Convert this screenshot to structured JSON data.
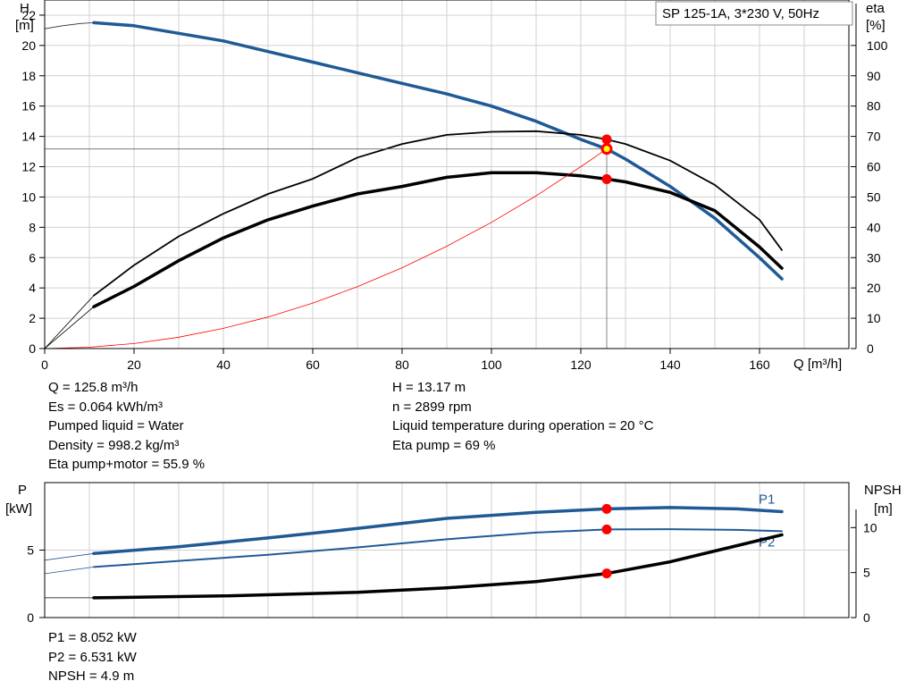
{
  "model_label": "SP 125-1A, 3*230 V, 50Hz",
  "top_chart": {
    "left_axis_title": "H",
    "left_axis_unit": "[m]",
    "right_axis_title": "eta",
    "right_axis_unit": "[%]",
    "x_axis_label": "Q [m³/h]"
  },
  "bottom_chart": {
    "left_axis_title": "P",
    "left_axis_unit": "[kW]",
    "right_axis_title": "NPSH",
    "right_axis_unit": "[m]"
  },
  "readouts_top_left": [
    "Q = 125.8 m³/h",
    "Es = 0.064 kWh/m³",
    "Pumped liquid = Water",
    "Density = 998.2 kg/m³",
    "Eta pump+motor = 55.9 %"
  ],
  "readouts_top_right": [
    "H = 13.17 m",
    "n = 2899 rpm",
    "Liquid temperature during operation = 20 °C",
    "Eta pump = 69 %"
  ],
  "readouts_bottom": [
    "P1 = 8.052 kW",
    "P2 = 6.531 kW",
    "NPSH = 4.9 m"
  ],
  "colors": {
    "head_curve": "#1f5a96",
    "efficiency_curves": "#000000",
    "system_curve": "#ff0000",
    "duty_point": "#ff0000",
    "duty_point_center": "#ffff00",
    "grid": "#d0d0d0",
    "power_curves": "#1f5a96"
  },
  "chart_data": [
    {
      "type": "line",
      "x_ticks": [
        0,
        20,
        40,
        60,
        80,
        100,
        120,
        140,
        160
      ],
      "xlim": [
        0,
        180
      ],
      "ylim": [
        0,
        23
      ],
      "y_ticks": [
        0,
        2,
        4,
        6,
        8,
        10,
        12,
        14,
        16,
        18,
        20,
        22
      ],
      "y2lim": [
        0,
        115
      ],
      "y2_ticks": [
        0,
        10,
        20,
        30,
        40,
        50,
        60,
        70,
        80,
        90,
        100
      ],
      "grid": true,
      "series": [
        {
          "axis": "left",
          "role": "head-extension",
          "x": [
            0,
            4,
            8,
            11
          ],
          "y": [
            21.1,
            21.3,
            21.45,
            21.5
          ]
        },
        {
          "axis": "left",
          "role": "head",
          "x": [
            11,
            20,
            30,
            40,
            50,
            60,
            70,
            80,
            90,
            100,
            110,
            120,
            125.8,
            130,
            140,
            150,
            160,
            165
          ],
          "y": [
            21.5,
            21.3,
            20.8,
            20.3,
            19.6,
            18.9,
            18.2,
            17.5,
            16.8,
            16.0,
            15.0,
            13.8,
            13.17,
            12.5,
            10.7,
            8.6,
            6.0,
            4.6
          ]
        },
        {
          "axis": "right",
          "role": "eta-pump-extension",
          "x": [
            0,
            11
          ],
          "y": [
            0,
            17.5
          ]
        },
        {
          "axis": "right",
          "role": "eta-pump",
          "x": [
            11,
            20,
            30,
            40,
            50,
            60,
            70,
            80,
            90,
            100,
            110,
            120,
            125.8,
            130,
            140,
            150,
            160,
            165
          ],
          "y": [
            17.5,
            27.5,
            37,
            44.5,
            51,
            56,
            63,
            67.5,
            70.5,
            71.5,
            71.7,
            70.5,
            69,
            67.5,
            62,
            54,
            42.5,
            32.5
          ]
        },
        {
          "axis": "right",
          "role": "eta-total-extension",
          "x": [
            0,
            11
          ],
          "y": [
            0,
            13.8
          ]
        },
        {
          "axis": "right",
          "role": "eta-total",
          "x": [
            11,
            20,
            30,
            40,
            50,
            60,
            70,
            80,
            90,
            100,
            110,
            120,
            125.8,
            130,
            140,
            150,
            160,
            165
          ],
          "y": [
            13.8,
            20.5,
            29,
            36.5,
            42.5,
            47,
            51,
            53.5,
            56.5,
            58,
            58,
            57,
            55.9,
            55,
            51.5,
            45.5,
            33.5,
            26.5
          ]
        },
        {
          "axis": "left",
          "role": "system",
          "x": [
            0,
            10,
            20,
            30,
            40,
            50,
            60,
            70,
            80,
            90,
            100,
            110,
            120,
            125.8
          ],
          "y": [
            0,
            0.09,
            0.33,
            0.75,
            1.33,
            2.08,
            3.0,
            4.08,
            5.33,
            6.75,
            8.33,
            10.08,
            12.0,
            13.17
          ]
        }
      ],
      "operating_point": {
        "q": 125.8,
        "h": 13.17,
        "eta_pump": 69,
        "eta_total": 55.9
      }
    },
    {
      "type": "line",
      "x_ticks": [
        0,
        20,
        40,
        60,
        80,
        100,
        120,
        140,
        160
      ],
      "xlim": [
        0,
        180
      ],
      "ylim": [
        0,
        10
      ],
      "y_ticks": [
        0,
        5
      ],
      "y2lim": [
        0,
        15
      ],
      "y2_ticks": [
        0,
        5,
        10
      ],
      "grid": true,
      "series": [
        {
          "axis": "left",
          "name": "P1",
          "role": "p1",
          "x": [
            0,
            11,
            30,
            50,
            70,
            90,
            110,
            125.8,
            140,
            155,
            165
          ],
          "y": [
            4.25,
            4.75,
            5.25,
            5.9,
            6.6,
            7.35,
            7.8,
            8.052,
            8.15,
            8.05,
            7.85
          ]
        },
        {
          "axis": "left",
          "name": "P2",
          "role": "p2",
          "x": [
            0,
            11,
            30,
            50,
            70,
            90,
            110,
            125.8,
            140,
            155,
            165
          ],
          "y": [
            3.25,
            3.75,
            4.2,
            4.65,
            5.2,
            5.8,
            6.3,
            6.531,
            6.55,
            6.5,
            6.4
          ]
        },
        {
          "axis": "right",
          "role": "npsh",
          "x": [
            0,
            11,
            40,
            70,
            90,
            110,
            125.8,
            140,
            155,
            165
          ],
          "y": [
            2.2,
            2.2,
            2.4,
            2.8,
            3.3,
            4.0,
            4.9,
            6.2,
            8.0,
            9.2
          ]
        }
      ],
      "operating_point": {
        "q": 125.8,
        "p1": 8.052,
        "p2": 6.531,
        "npsh": 4.9
      }
    }
  ]
}
